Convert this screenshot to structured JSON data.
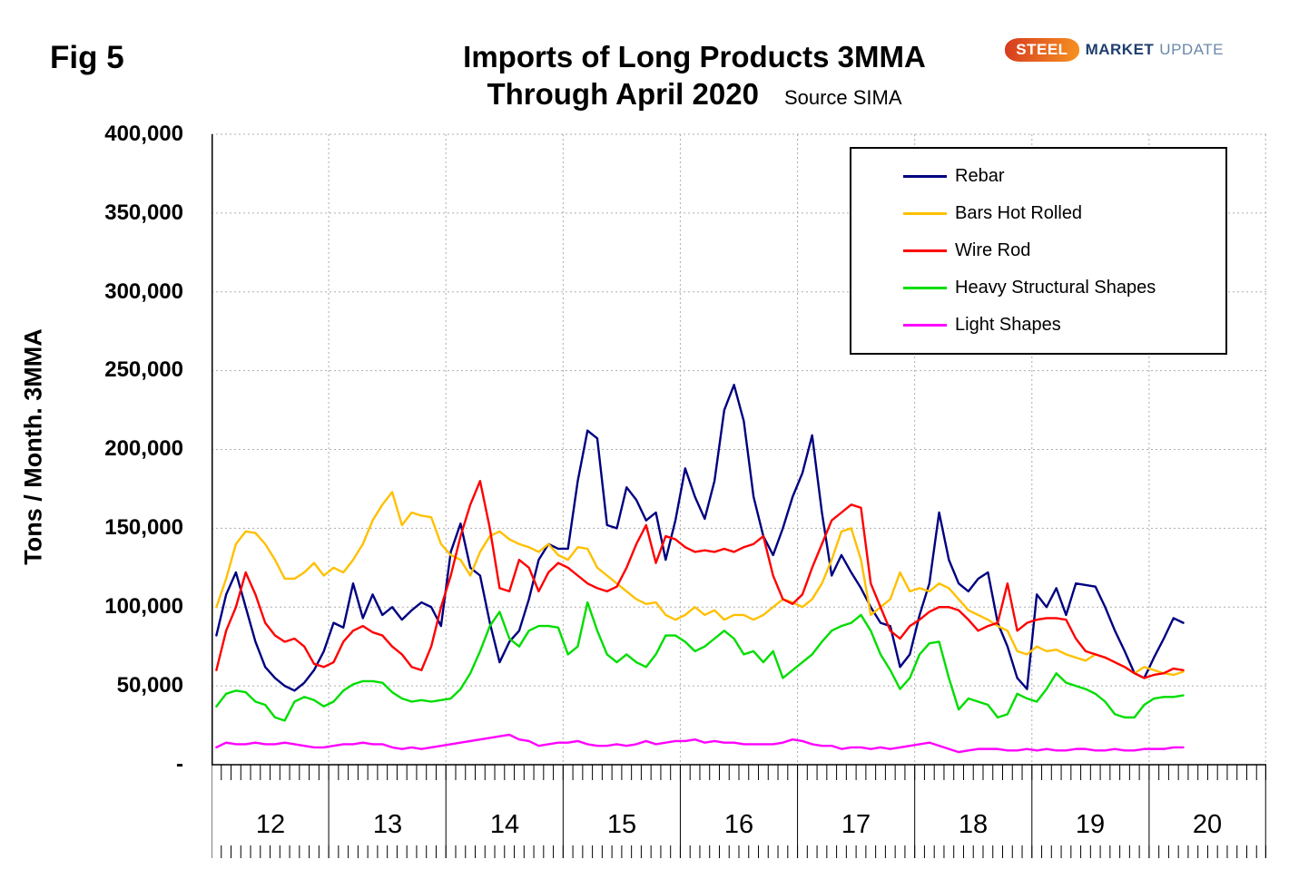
{
  "fig_label": "Fig 5",
  "title": {
    "line1": "Imports of Long Products 3MMA",
    "line2": "Through April 2020",
    "source": "Source SIMA"
  },
  "logo": {
    "steel": "STEEL",
    "market": "MARKET",
    "update": "UPDATE"
  },
  "y_axis_label": "Tons / Month. 3MMA",
  "y_tick_labels": [
    "400,000",
    "350,000",
    "300,000",
    "250,000",
    "200,000",
    "150,000",
    "100,000",
    "50,000",
    "-"
  ],
  "x_year_labels": [
    "12",
    "13",
    "14",
    "15",
    "16",
    "17",
    "18",
    "19",
    "20"
  ],
  "chart_data": {
    "type": "line",
    "title": "Imports of Long Products 3MMA Through April 2020",
    "xlabel": "",
    "ylabel": "Tons / Month. 3MMA",
    "ylim": [
      0,
      400000
    ],
    "y_grid_step": 50000,
    "grid": true,
    "legend_position": "upper right",
    "x_start": "2012-01",
    "x_end_data": "2020-04",
    "x_axis_total_months": 108,
    "grid_color": "#adadad",
    "series": [
      {
        "name": "Rebar",
        "color": "#000080",
        "values": [
          82000,
          108000,
          122000,
          100000,
          78000,
          62000,
          55000,
          50000,
          47000,
          52000,
          60000,
          72000,
          90000,
          87000,
          115000,
          93000,
          108000,
          95000,
          100000,
          92000,
          98000,
          103000,
          100000,
          88000,
          135000,
          153000,
          125000,
          120000,
          90000,
          65000,
          78000,
          85000,
          105000,
          130000,
          140000,
          137000,
          137000,
          180000,
          212000,
          207000,
          152000,
          150000,
          176000,
          168000,
          155000,
          160000,
          130000,
          155000,
          188000,
          170000,
          156000,
          180000,
          225000,
          241000,
          218000,
          170000,
          145000,
          133000,
          150000,
          170000,
          185000,
          209000,
          160000,
          120000,
          133000,
          122000,
          112000,
          100000,
          90000,
          88000,
          62000,
          70000,
          95000,
          115000,
          160000,
          130000,
          115000,
          110000,
          118000,
          122000,
          90000,
          75000,
          55000,
          48000,
          108000,
          100000,
          112000,
          95000,
          115000,
          114000,
          113000,
          100000,
          85000,
          72000,
          58000,
          55000,
          68000,
          80000,
          93000,
          90000
        ]
      },
      {
        "name": "Bars Hot Rolled",
        "color": "#ffc000",
        "values": [
          100000,
          118000,
          140000,
          148000,
          147000,
          140000,
          130000,
          118000,
          118000,
          122000,
          128000,
          120000,
          125000,
          122000,
          130000,
          140000,
          155000,
          165000,
          173000,
          152000,
          160000,
          158000,
          157000,
          140000,
          133000,
          130000,
          120000,
          135000,
          145000,
          148000,
          143000,
          140000,
          138000,
          135000,
          140000,
          133000,
          130000,
          138000,
          137000,
          125000,
          120000,
          115000,
          110000,
          105000,
          102000,
          103000,
          95000,
          92000,
          95000,
          100000,
          95000,
          98000,
          92000,
          95000,
          95000,
          92000,
          95000,
          100000,
          105000,
          103000,
          100000,
          105000,
          115000,
          130000,
          148000,
          150000,
          130000,
          95000,
          100000,
          105000,
          122000,
          110000,
          112000,
          110000,
          115000,
          112000,
          105000,
          98000,
          95000,
          92000,
          88000,
          85000,
          72000,
          70000,
          75000,
          72000,
          73000,
          70000,
          68000,
          66000,
          70000,
          68000,
          65000,
          62000,
          58000,
          62000,
          60000,
          58000,
          57000,
          59000
        ]
      },
      {
        "name": "Wire Rod",
        "color": "#ff0000",
        "values": [
          60000,
          85000,
          100000,
          122000,
          108000,
          90000,
          82000,
          78000,
          80000,
          75000,
          64000,
          62000,
          65000,
          78000,
          85000,
          88000,
          84000,
          82000,
          75000,
          70000,
          62000,
          60000,
          75000,
          100000,
          120000,
          145000,
          165000,
          180000,
          150000,
          112000,
          110000,
          130000,
          125000,
          110000,
          122000,
          128000,
          125000,
          120000,
          115000,
          112000,
          110000,
          113000,
          125000,
          140000,
          152000,
          128000,
          145000,
          143000,
          138000,
          135000,
          136000,
          135000,
          137000,
          135000,
          138000,
          140000,
          145000,
          120000,
          105000,
          102000,
          108000,
          125000,
          140000,
          155000,
          160000,
          165000,
          163000,
          115000,
          100000,
          85000,
          80000,
          88000,
          92000,
          97000,
          100000,
          100000,
          98000,
          92000,
          85000,
          88000,
          90000,
          115000,
          85000,
          90000,
          92000,
          93000,
          93000,
          92000,
          80000,
          72000,
          70000,
          68000,
          65000,
          62000,
          58000,
          55000,
          57000,
          58000,
          61000,
          60000
        ]
      },
      {
        "name": "Heavy Structural Shapes",
        "color": "#00dd00",
        "values": [
          37000,
          45000,
          47000,
          46000,
          40000,
          38000,
          30000,
          28000,
          40000,
          43000,
          41000,
          37000,
          40000,
          47000,
          51000,
          53000,
          53000,
          52000,
          46000,
          42000,
          40000,
          41000,
          40000,
          41000,
          42000,
          48000,
          58000,
          72000,
          88000,
          97000,
          80000,
          75000,
          85000,
          88000,
          88000,
          87000,
          70000,
          75000,
          103000,
          85000,
          70000,
          65000,
          70000,
          65000,
          62000,
          70000,
          82000,
          82000,
          78000,
          72000,
          75000,
          80000,
          85000,
          80000,
          70000,
          72000,
          65000,
          72000,
          55000,
          60000,
          65000,
          70000,
          78000,
          85000,
          88000,
          90000,
          95000,
          85000,
          70000,
          60000,
          48000,
          55000,
          70000,
          77000,
          78000,
          55000,
          35000,
          42000,
          40000,
          38000,
          30000,
          32000,
          45000,
          42000,
          40000,
          48000,
          58000,
          52000,
          50000,
          48000,
          45000,
          40000,
          32000,
          30000,
          30000,
          38000,
          42000,
          43000,
          43000,
          44000
        ]
      },
      {
        "name": "Light Shapes",
        "color": "#ff00ff",
        "values": [
          11000,
          14000,
          13000,
          13000,
          14000,
          13000,
          13000,
          14000,
          13000,
          12000,
          11000,
          11000,
          12000,
          13000,
          13000,
          14000,
          13000,
          13000,
          11000,
          10000,
          11000,
          10000,
          11000,
          12000,
          13000,
          14000,
          15000,
          16000,
          17000,
          18000,
          19000,
          16000,
          15000,
          12000,
          13000,
          14000,
          14000,
          15000,
          13000,
          12000,
          12000,
          13000,
          12000,
          13000,
          15000,
          13000,
          14000,
          15000,
          15000,
          16000,
          14000,
          15000,
          14000,
          14000,
          13000,
          13000,
          13000,
          13000,
          14000,
          16000,
          15000,
          13000,
          12000,
          12000,
          10000,
          11000,
          11000,
          10000,
          11000,
          10000,
          11000,
          12000,
          13000,
          14000,
          12000,
          10000,
          8000,
          9000,
          10000,
          10000,
          10000,
          9000,
          9000,
          10000,
          9000,
          10000,
          9000,
          9000,
          10000,
          10000,
          9000,
          9000,
          10000,
          9000,
          9000,
          10000,
          10000,
          10000,
          11000,
          11000
        ]
      }
    ]
  }
}
